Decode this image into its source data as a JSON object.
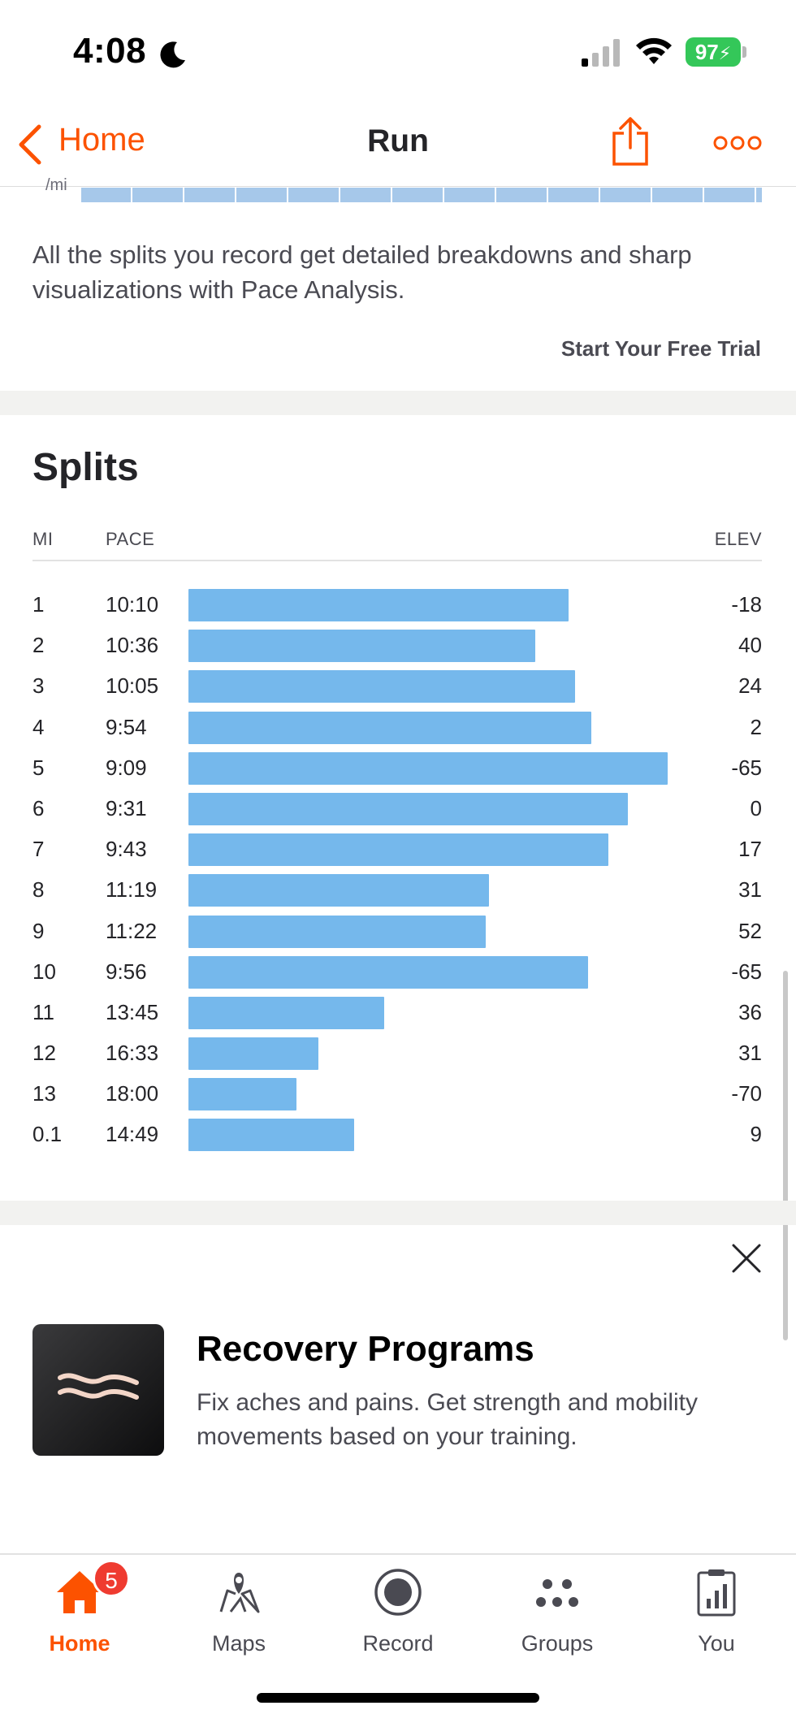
{
  "status_bar": {
    "time": "4:08",
    "battery": "97"
  },
  "nav": {
    "back_label": "Home",
    "title": "Run"
  },
  "chart_remnant": {
    "y_label": "/mi"
  },
  "promo": {
    "text": "All the splits you record get detailed breakdowns and sharp visualizations with Pace Analysis.",
    "cta": "Start Your Free Trial"
  },
  "splits": {
    "title": "Splits",
    "headers": {
      "mi": "MI",
      "pace": "PACE",
      "elev": "ELEV"
    },
    "rows": [
      {
        "mi": "1",
        "pace": "10:10",
        "elev": "-18"
      },
      {
        "mi": "2",
        "pace": "10:36",
        "elev": "40"
      },
      {
        "mi": "3",
        "pace": "10:05",
        "elev": "24"
      },
      {
        "mi": "4",
        "pace": "9:54",
        "elev": "2"
      },
      {
        "mi": "5",
        "pace": "9:09",
        "elev": "-65"
      },
      {
        "mi": "6",
        "pace": "9:31",
        "elev": "0"
      },
      {
        "mi": "7",
        "pace": "9:43",
        "elev": "17"
      },
      {
        "mi": "8",
        "pace": "11:19",
        "elev": "31"
      },
      {
        "mi": "9",
        "pace": "11:22",
        "elev": "52"
      },
      {
        "mi": "10",
        "pace": "9:56",
        "elev": "-65"
      },
      {
        "mi": "11",
        "pace": "13:45",
        "elev": "36"
      },
      {
        "mi": "12",
        "pace": "16:33",
        "elev": "31"
      },
      {
        "mi": "13",
        "pace": "18:00",
        "elev": "-70"
      },
      {
        "mi": "0.1",
        "pace": "14:49",
        "elev": "9"
      }
    ],
    "bar_color": "#75b8ec"
  },
  "recovery": {
    "heading": "Recovery Programs",
    "description": "Fix aches and pains. Get strength and mobility movements based on your training."
  },
  "tab_bar": {
    "tabs": [
      {
        "label": "Home",
        "icon": "home-icon",
        "active": true,
        "badge": "5"
      },
      {
        "label": "Maps",
        "icon": "maps-icon"
      },
      {
        "label": "Record",
        "icon": "record-icon"
      },
      {
        "label": "Groups",
        "icon": "groups-icon"
      },
      {
        "label": "You",
        "icon": "you-icon"
      }
    ]
  },
  "colors": {
    "accent": "#fc5200",
    "badge": "#ef3b30",
    "battery": "#34c759"
  }
}
